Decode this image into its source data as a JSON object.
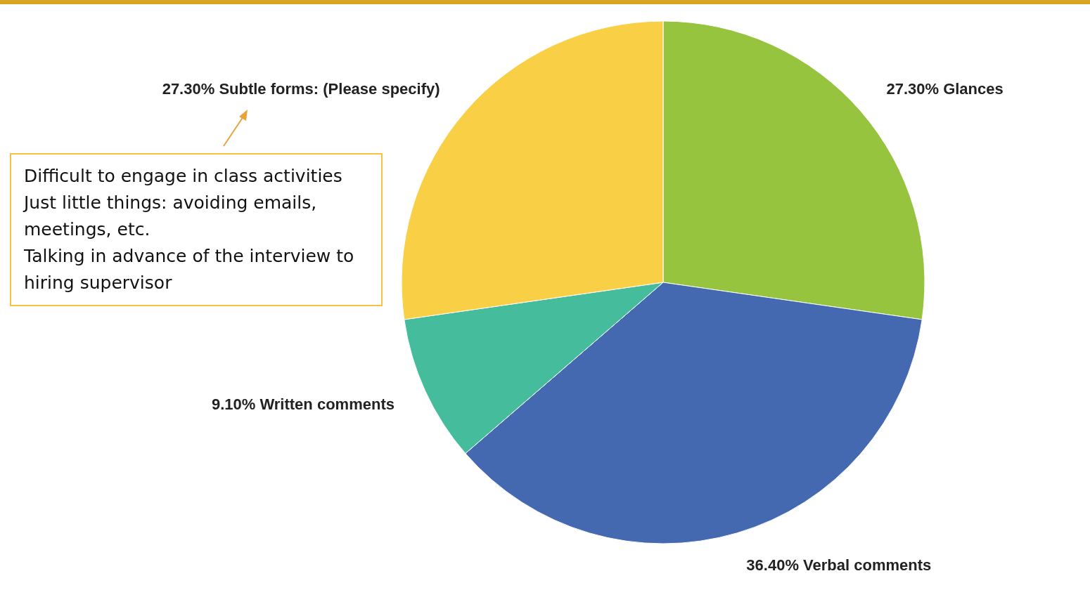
{
  "chart_data": {
    "type": "pie",
    "categories": [
      "Glances",
      "Verbal comments",
      "Written comments",
      "Subtle forms: (Please specify)"
    ],
    "values": [
      27.3,
      36.4,
      9.1,
      27.3
    ],
    "value_labels": [
      "27.30%",
      "36.40%",
      "9.10%",
      "27.30%"
    ],
    "colors": [
      "#97c43e",
      "#4469b1",
      "#45bd9c",
      "#f9d045"
    ],
    "annotations": [
      "Difficult to engage in class activities\nJust little things:  avoiding emails, meetings, etc.\nTalking in advance of the interview to hiring supervisor"
    ]
  }
}
